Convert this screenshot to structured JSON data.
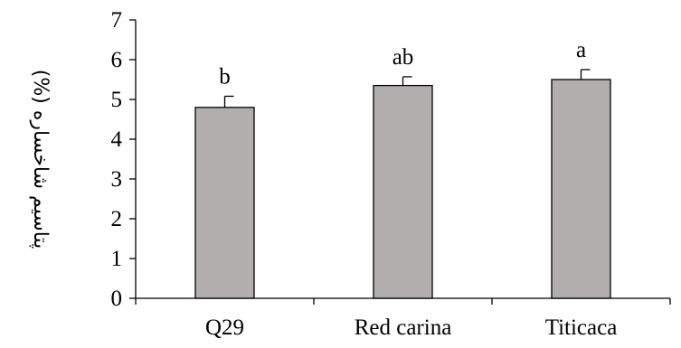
{
  "chart_data": {
    "type": "bar",
    "categories": [
      "Q29",
      "Red carina",
      "Titicaca"
    ],
    "values": [
      4.8,
      5.35,
      5.5
    ],
    "errors": [
      0.28,
      0.22,
      0.25
    ],
    "significance_labels": [
      "b",
      "ab",
      "a"
    ],
    "ylabel": "پتاسیم شاخساره (%)",
    "xlabel": "",
    "ylim": [
      0,
      7
    ],
    "yticks": [
      0,
      1,
      2,
      3,
      4,
      5,
      6,
      7
    ],
    "grid": false,
    "legend": "none",
    "colors": {
      "bar_fill": "#b3aeae",
      "bar_stroke": "#000000",
      "axis": "#000000"
    }
  }
}
